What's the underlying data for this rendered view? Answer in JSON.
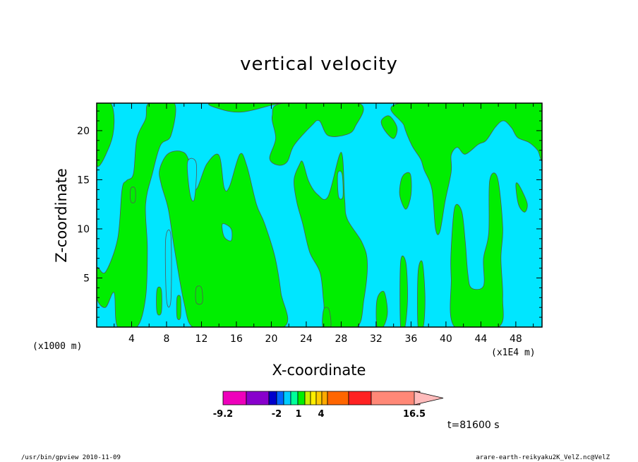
{
  "chart_data": {
    "type": "heatmap",
    "title": "vertical velocity",
    "xlabel": "X-coordinate",
    "ylabel": "Z-coordinate",
    "xunit_left": "(x1000 m)",
    "xunit_right": "(x1E4 m)",
    "xlim": [
      0,
      51
    ],
    "ylim": [
      0,
      22.8
    ],
    "xticks": [
      4,
      8,
      12,
      16,
      20,
      24,
      28,
      32,
      36,
      40,
      44,
      48
    ],
    "yticks": [
      5,
      10,
      15,
      20
    ],
    "colors": {
      "negative": "#00e6ff",
      "positive": "#00ee00",
      "contour": "#555555"
    },
    "positive_regions": [
      [
        [
          0,
          16.5
        ],
        [
          1.5,
          18.5
        ],
        [
          2.0,
          20.8
        ],
        [
          1.6,
          22.8
        ],
        [
          0,
          22.8
        ]
      ],
      [
        [
          0,
          6.0
        ],
        [
          1.0,
          5.6
        ],
        [
          2.4,
          9.0
        ],
        [
          2.9,
          14.0
        ],
        [
          3.4,
          14.9
        ],
        [
          4.2,
          15.6
        ],
        [
          4.6,
          19.2
        ],
        [
          5.6,
          21.2
        ],
        [
          6.0,
          22.8
        ],
        [
          8.9,
          22.8
        ],
        [
          8.5,
          19.5
        ],
        [
          7.3,
          18.5
        ],
        [
          6.4,
          15.7
        ],
        [
          5.6,
          12.5
        ],
        [
          5.8,
          8.0
        ],
        [
          5.6,
          3.0
        ],
        [
          4.6,
          0
        ],
        [
          2.4,
          0
        ],
        [
          2.0,
          3.5
        ],
        [
          1.0,
          2.0
        ],
        [
          0,
          3.0
        ]
      ],
      [
        [
          7.2,
          16.0
        ],
        [
          8.1,
          17.6
        ],
        [
          9.6,
          17.9
        ],
        [
          10.5,
          17.1
        ],
        [
          11.3,
          14.0
        ],
        [
          12.6,
          16.6
        ],
        [
          14.0,
          17.5
        ],
        [
          14.6,
          14.2
        ],
        [
          15.2,
          14.3
        ],
        [
          16.4,
          17.6
        ],
        [
          17.2,
          16.4
        ],
        [
          18.3,
          12.5
        ],
        [
          19.2,
          10.6
        ],
        [
          20.4,
          7.2
        ],
        [
          21.1,
          3.5
        ],
        [
          21.4,
          0
        ],
        [
          14.0,
          0
        ],
        [
          11.0,
          0
        ],
        [
          10.0,
          2.5
        ],
        [
          8.9,
          8.0
        ],
        [
          8.2,
          12.0
        ],
        [
          7.4,
          14.5
        ]
      ],
      [
        [
          13.1,
          22.8
        ],
        [
          14.5,
          22.1
        ],
        [
          16.7,
          21.9
        ],
        [
          19.6,
          22.5
        ],
        [
          20.4,
          22.8
        ]
      ],
      [
        [
          19.8,
          17.2
        ],
        [
          20.5,
          19.2
        ],
        [
          20.1,
          21.5
        ],
        [
          21.4,
          22.8
        ],
        [
          30.0,
          22.8
        ],
        [
          29.6,
          20.4
        ],
        [
          28.6,
          19.6
        ],
        [
          26.5,
          19.5
        ],
        [
          25.5,
          21.0
        ],
        [
          24.6,
          20.5
        ],
        [
          22.6,
          18.5
        ],
        [
          21.8,
          16.8
        ],
        [
          20.7,
          16.5
        ]
      ],
      [
        [
          22.6,
          15.0
        ],
        [
          23.2,
          16.5
        ],
        [
          23.6,
          16.8
        ],
        [
          24.3,
          14.8
        ],
        [
          25.3,
          13.5
        ],
        [
          26.5,
          13.3
        ],
        [
          28.0,
          17.8
        ],
        [
          28.4,
          13.0
        ],
        [
          28.7,
          11.0
        ],
        [
          30.4,
          8.6
        ],
        [
          31.0,
          6.5
        ],
        [
          30.6,
          2.8
        ],
        [
          29.8,
          0
        ],
        [
          26.4,
          0
        ],
        [
          26.0,
          2.5
        ],
        [
          25.6,
          5.5
        ],
        [
          24.4,
          7.6
        ],
        [
          23.6,
          10.5
        ],
        [
          22.9,
          12.8
        ]
      ],
      [
        [
          34.8,
          22.8
        ],
        [
          35.2,
          20.5
        ],
        [
          36.1,
          18.5
        ],
        [
          37.1,
          17.1
        ],
        [
          37.5,
          16.0
        ],
        [
          38.4,
          14.0
        ],
        [
          38.8,
          10.0
        ],
        [
          39.3,
          9.7
        ],
        [
          39.9,
          12.8
        ],
        [
          40.6,
          15.8
        ],
        [
          40.6,
          17.5
        ],
        [
          41.3,
          18.3
        ],
        [
          42.2,
          17.6
        ],
        [
          43.7,
          18.6
        ],
        [
          44.6,
          19.0
        ],
        [
          45.7,
          20.4
        ],
        [
          46.6,
          21.0
        ],
        [
          47.5,
          20.3
        ],
        [
          48.2,
          19.3
        ],
        [
          49.5,
          18.8
        ],
        [
          50.5,
          18.0
        ],
        [
          51,
          17.2
        ],
        [
          51,
          22.8
        ]
      ],
      [
        [
          32.6,
          21.0
        ],
        [
          33.0,
          20.0
        ],
        [
          34.0,
          19.2
        ],
        [
          34.4,
          20.3
        ],
        [
          33.5,
          21.5
        ]
      ],
      [
        [
          35.0,
          15.3
        ],
        [
          35.9,
          15.6
        ],
        [
          36.0,
          13.5
        ],
        [
          35.4,
          12.0
        ],
        [
          34.7,
          13.5
        ]
      ],
      [
        [
          41.0,
          12.2
        ],
        [
          41.8,
          11.8
        ],
        [
          42.2,
          8.8
        ],
        [
          42.5,
          5.5
        ],
        [
          42.9,
          4.0
        ],
        [
          44.3,
          4.2
        ],
        [
          44.3,
          7.0
        ],
        [
          44.9,
          9.6
        ],
        [
          45.0,
          14.9
        ],
        [
          45.9,
          15.2
        ],
        [
          46.5,
          10.2
        ],
        [
          46.3,
          7.0
        ],
        [
          46.5,
          3.0
        ],
        [
          46.0,
          0
        ],
        [
          41.0,
          0
        ],
        [
          40.6,
          5.0
        ],
        [
          40.6,
          8.0
        ]
      ],
      [
        [
          48.0,
          14.5
        ],
        [
          48.4,
          14.4
        ],
        [
          49.3,
          12.6
        ],
        [
          49.0,
          11.7
        ],
        [
          48.3,
          12.5
        ]
      ],
      [
        [
          32.1,
          2.8
        ],
        [
          32.9,
          3.6
        ],
        [
          33.3,
          1.5
        ],
        [
          32.8,
          0
        ],
        [
          32.1,
          0
        ]
      ],
      [
        [
          34.8,
          6.6
        ],
        [
          35.4,
          6.6
        ],
        [
          35.6,
          3.0
        ],
        [
          35.3,
          0
        ],
        [
          34.8,
          0
        ]
      ],
      [
        [
          36.8,
          5.5
        ],
        [
          37.3,
          6.6
        ],
        [
          37.6,
          3.0
        ],
        [
          37.4,
          0
        ],
        [
          36.8,
          0
        ]
      ],
      [
        [
          26.0,
          1.8
        ],
        [
          26.6,
          1.8
        ],
        [
          26.8,
          0
        ],
        [
          25.9,
          0
        ]
      ]
    ],
    "negative_islands": [
      [
        [
          7.9,
          8.9
        ],
        [
          8.5,
          9.3
        ],
        [
          8.5,
          2.8
        ],
        [
          8.0,
          2.8
        ]
      ],
      [
        [
          10.4,
          16.8
        ],
        [
          11.4,
          16.7
        ],
        [
          11.2,
          13.1
        ],
        [
          10.7,
          13.5
        ]
      ],
      [
        [
          14.4,
          10.5
        ],
        [
          15.4,
          10.0
        ],
        [
          15.4,
          8.8
        ],
        [
          14.6,
          9.2
        ]
      ],
      [
        [
          27.6,
          15.6
        ],
        [
          28.1,
          15.6
        ],
        [
          28.2,
          13.3
        ],
        [
          27.7,
          13.3
        ]
      ]
    ],
    "positive_islands": [
      [
        [
          3.9,
          14.1
        ],
        [
          4.4,
          14.1
        ],
        [
          4.4,
          12.8
        ],
        [
          3.9,
          12.8
        ]
      ],
      [
        [
          6.9,
          3.8
        ],
        [
          7.4,
          3.8
        ],
        [
          7.4,
          1.5
        ],
        [
          6.9,
          1.5
        ]
      ],
      [
        [
          9.2,
          3.0
        ],
        [
          9.6,
          3.0
        ],
        [
          9.6,
          1.0
        ],
        [
          9.2,
          1.0
        ]
      ],
      [
        [
          11.4,
          4.0
        ],
        [
          12.0,
          4.0
        ],
        [
          12.1,
          2.5
        ],
        [
          11.4,
          2.5
        ]
      ]
    ],
    "colorbar": {
      "tick_labels": [
        "-9.2",
        "-2",
        "1",
        "4",
        "16.5"
      ],
      "segments": [
        "#ee00bb",
        "#8800cc",
        "#0000cc",
        "#0066ff",
        "#00ccff",
        "#00ff99",
        "#00ee00",
        "#ccee00",
        "#ffee00",
        "#ffcc00",
        "#ffaa00",
        "#ff6600",
        "#ff2222",
        "#ff8877"
      ],
      "arrow_color": "#ffbbbb"
    }
  },
  "annotations": {
    "time": "t=81600 s",
    "footer_left": "/usr/bin/gpview   2010-11-09",
    "footer_right": "arare-earth-reikyaku2K_VelZ.nc@VelZ"
  }
}
